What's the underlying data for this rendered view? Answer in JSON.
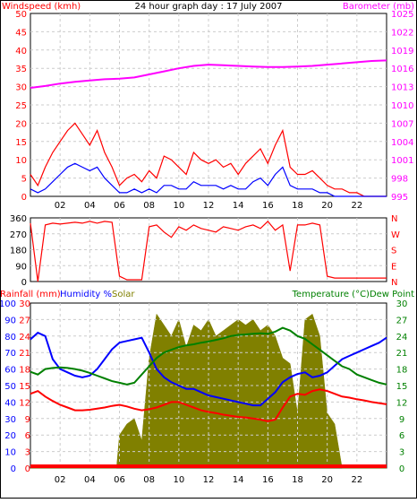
{
  "chart_data": [
    {
      "type": "line",
      "title": "24 hour graph day : 17 July 2007",
      "ylabel_left": "Windspeed (kmh)",
      "ylabel_right": "Barometer (mb)",
      "x_ticks": [
        "02",
        "04",
        "06",
        "08",
        "10",
        "12",
        "14",
        "16",
        "18",
        "20",
        "22"
      ],
      "xlim": [
        0,
        24
      ],
      "ylim_left": [
        0,
        50
      ],
      "y_ticks_left": [
        0,
        5,
        10,
        15,
        20,
        25,
        30,
        35,
        40,
        45,
        50
      ],
      "ylim_right": [
        995,
        1025
      ],
      "y_ticks_right": [
        995,
        998,
        1001,
        1004,
        1007,
        1010,
        1013,
        1016,
        1019,
        1022,
        1025
      ],
      "grid": true,
      "colors": {
        "gust": "#ff0000",
        "average": "#0000ff",
        "barometer": "#ff00ff",
        "left_axis_label": "#ff0000",
        "right_axis_label": "#ff00ff"
      },
      "series": [
        {
          "id": "gust",
          "axis": "left",
          "x": [
            0,
            0.5,
            1,
            1.5,
            2,
            2.5,
            3,
            3.5,
            4,
            4.5,
            5,
            5.5,
            6,
            6.5,
            7,
            7.5,
            8,
            8.5,
            9,
            9.5,
            10,
            10.5,
            11,
            11.5,
            12,
            12.5,
            13,
            13.5,
            14,
            14.5,
            15,
            15.5,
            16,
            16.5,
            17,
            17.5,
            18,
            18.5,
            19,
            19.5,
            20,
            20.5,
            21,
            21.5,
            22,
            22.5,
            23,
            23.5,
            24
          ],
          "values": [
            6,
            3,
            8,
            12,
            15,
            18,
            20,
            17,
            14,
            18,
            12,
            8,
            3,
            5,
            6,
            4,
            7,
            5,
            11,
            10,
            8,
            6,
            12,
            10,
            9,
            10,
            8,
            9,
            6,
            9,
            11,
            13,
            9,
            14,
            18,
            8,
            6,
            6,
            7,
            5,
            3,
            2,
            2,
            1,
            1,
            0,
            0,
            0,
            0
          ]
        },
        {
          "id": "average",
          "axis": "left",
          "x": [
            0,
            0.5,
            1,
            1.5,
            2,
            2.5,
            3,
            3.5,
            4,
            4.5,
            5,
            5.5,
            6,
            6.5,
            7,
            7.5,
            8,
            8.5,
            9,
            9.5,
            10,
            10.5,
            11,
            11.5,
            12,
            12.5,
            13,
            13.5,
            14,
            14.5,
            15,
            15.5,
            16,
            16.5,
            17,
            17.5,
            18,
            18.5,
            19,
            19.5,
            20,
            20.5,
            21,
            21.5,
            22,
            22.5,
            23,
            23.5,
            24
          ],
          "values": [
            2,
            1,
            2,
            4,
            6,
            8,
            9,
            8,
            7,
            8,
            5,
            3,
            1,
            1,
            2,
            1,
            2,
            1,
            3,
            3,
            2,
            2,
            4,
            3,
            3,
            3,
            2,
            3,
            2,
            2,
            4,
            5,
            3,
            6,
            8,
            3,
            2,
            2,
            2,
            1,
            1,
            0,
            0,
            0,
            0,
            0,
            0,
            0,
            0
          ]
        },
        {
          "id": "barometer",
          "axis": "right",
          "x": [
            0,
            1,
            2,
            3,
            4,
            5,
            6,
            7,
            8,
            9,
            10,
            11,
            12,
            13,
            14,
            15,
            16,
            17,
            18,
            19,
            20,
            21,
            22,
            23,
            24
          ],
          "values": [
            1012.8,
            1013.1,
            1013.5,
            1013.8,
            1014.0,
            1014.2,
            1014.3,
            1014.5,
            1015.0,
            1015.5,
            1016.0,
            1016.4,
            1016.6,
            1016.5,
            1016.4,
            1016.3,
            1016.2,
            1016.2,
            1016.3,
            1016.4,
            1016.6,
            1016.8,
            1017.0,
            1017.2,
            1017.3
          ]
        }
      ]
    },
    {
      "type": "line",
      "ylabel_right_letters": [
        "N",
        "W",
        "S",
        "E",
        "N"
      ],
      "ylim": [
        0,
        360
      ],
      "y_ticks": [
        0,
        90,
        180,
        270,
        360
      ],
      "xlim": [
        0,
        24
      ],
      "grid": true,
      "colors": {
        "direction": "#ff0000",
        "compass_labels": "#ff0000"
      },
      "series": [
        {
          "id": "wind_direction",
          "x": [
            0,
            0.5,
            1,
            1.5,
            2,
            2.5,
            3,
            3.5,
            4,
            4.5,
            5,
            5.5,
            6,
            6.5,
            7,
            7.5,
            8,
            8.5,
            9,
            9.5,
            10,
            10.5,
            11,
            11.5,
            12,
            12.5,
            13,
            13.5,
            14,
            14.5,
            15,
            15.5,
            16,
            16.5,
            17,
            17.5,
            18,
            18.5,
            19,
            19.5,
            20,
            20.5,
            21,
            21.5,
            22,
            22.5,
            23,
            23.5,
            24
          ],
          "values": [
            330,
            0,
            320,
            330,
            325,
            330,
            335,
            330,
            340,
            330,
            340,
            335,
            30,
            10,
            10,
            10,
            310,
            320,
            280,
            250,
            310,
            290,
            320,
            300,
            290,
            280,
            310,
            300,
            290,
            310,
            320,
            300,
            340,
            290,
            320,
            60,
            320,
            320,
            330,
            320,
            30,
            20,
            20,
            20,
            20,
            20,
            20,
            20,
            20
          ]
        }
      ]
    },
    {
      "type": "area",
      "ylabel_left": "Rainfall (mm)",
      "legend_left": [
        "Humidity %",
        "Solar"
      ],
      "ylabel_right": "Temperature (°C)Dew Point",
      "x_ticks": [
        "02",
        "04",
        "06",
        "08",
        "10",
        "12",
        "14",
        "16",
        "18",
        "20",
        "22"
      ],
      "xlim": [
        0,
        24
      ],
      "ylim_left_humidity": [
        0,
        100
      ],
      "y_ticks_left_humidity": [
        0,
        10,
        20,
        30,
        40,
        50,
        60,
        70,
        80,
        90,
        100
      ],
      "ylim_left_rain": [
        0,
        30
      ],
      "y_ticks_left_rain": [
        0,
        3,
        6,
        9,
        12,
        15,
        18,
        21,
        24,
        27,
        30
      ],
      "ylim_right_temp": [
        0,
        30
      ],
      "y_ticks_right_temp": [
        0,
        3,
        6,
        9,
        12,
        15,
        18,
        21,
        24,
        27,
        30
      ],
      "grid": true,
      "colors": {
        "solar": "#808000",
        "humidity": "#0000ff",
        "temperature": "#008000",
        "dew_point": "#ff0000",
        "rainfall": "#ff0000",
        "rain_label": "#ff0000",
        "humidity_label": "#0000ff",
        "solar_label": "#808000",
        "temp_label": "#008000",
        "dewpoint_label": "#ff0000"
      },
      "series": [
        {
          "id": "solar",
          "axis": "right_temp",
          "x": [
            0,
            5.8,
            6,
            6.5,
            7,
            7.5,
            8,
            8.5,
            9,
            9.5,
            10,
            10.5,
            11,
            11.5,
            12,
            12.5,
            13,
            13.5,
            14,
            14.5,
            15,
            15.5,
            16,
            16.5,
            17,
            17.5,
            18,
            18.5,
            19,
            19.5,
            20,
            20.5,
            21,
            24
          ],
          "values": [
            0,
            0,
            6,
            8,
            9,
            5,
            20,
            28,
            26,
            24,
            27,
            22,
            26,
            25,
            27,
            24,
            25,
            26,
            27,
            26,
            27,
            25,
            26,
            24,
            20,
            19,
            10,
            27,
            28,
            24,
            10,
            8,
            0,
            0
          ]
        },
        {
          "id": "humidity",
          "axis": "left_humidity",
          "x": [
            0,
            0.5,
            1,
            1.5,
            2,
            2.5,
            3,
            3.5,
            4,
            4.5,
            5,
            5.5,
            6,
            6.5,
            7,
            7.5,
            8,
            8.5,
            9,
            9.5,
            10,
            10.5,
            11,
            11.5,
            12,
            12.5,
            13,
            13.5,
            14,
            14.5,
            15,
            15.5,
            16,
            16.5,
            17,
            17.5,
            18,
            18.5,
            19,
            19.5,
            20,
            20.5,
            21,
            21.5,
            22,
            22.5,
            23,
            23.5,
            24
          ],
          "values": [
            78,
            82,
            80,
            66,
            60,
            58,
            56,
            55,
            56,
            60,
            66,
            72,
            76,
            77,
            78,
            79,
            70,
            60,
            55,
            52,
            50,
            48,
            48,
            46,
            44,
            43,
            42,
            41,
            40,
            39,
            38,
            38,
            42,
            46,
            52,
            55,
            57,
            58,
            55,
            56,
            58,
            62,
            66,
            68,
            70,
            72,
            74,
            76,
            79
          ]
        },
        {
          "id": "temperature",
          "axis": "right_temp",
          "x": [
            0,
            0.5,
            1,
            1.5,
            2,
            2.5,
            3,
            3.5,
            4,
            4.5,
            5,
            5.5,
            6,
            6.5,
            7,
            7.5,
            8,
            8.5,
            9,
            9.5,
            10,
            10.5,
            11,
            11.5,
            12,
            12.5,
            13,
            13.5,
            14,
            14.5,
            15,
            15.5,
            16,
            16.5,
            17,
            17.5,
            18,
            18.5,
            19,
            19.5,
            20,
            20.5,
            21,
            21.5,
            22,
            22.5,
            23,
            23.5,
            24
          ],
          "values": [
            17.5,
            17,
            18,
            18.2,
            18.3,
            18.2,
            18,
            17.7,
            17.3,
            16.8,
            16.3,
            15.8,
            15.5,
            15.2,
            15.5,
            17,
            18.5,
            20,
            21,
            21.5,
            22,
            22.3,
            22.5,
            22.8,
            23,
            23.3,
            23.6,
            24,
            24.2,
            24.3,
            24.4,
            24.5,
            24.4,
            24.8,
            25.5,
            25,
            24,
            23.5,
            22.5,
            21.5,
            20.5,
            19.5,
            18.5,
            18,
            17,
            16.5,
            16,
            15.5,
            15.2
          ]
        },
        {
          "id": "dew_point",
          "axis": "right_temp",
          "x": [
            0,
            0.5,
            1,
            1.5,
            2,
            2.5,
            3,
            3.5,
            4,
            4.5,
            5,
            5.5,
            6,
            6.5,
            7,
            7.5,
            8,
            8.5,
            9,
            9.5,
            10,
            10.5,
            11,
            11.5,
            12,
            12.5,
            13,
            13.5,
            14,
            14.5,
            15,
            15.5,
            16,
            16.5,
            17,
            17.5,
            18,
            18.5,
            19,
            19.5,
            20,
            20.5,
            21,
            21.5,
            22,
            22.5,
            23,
            23.5,
            24
          ],
          "values": [
            13.5,
            14,
            13,
            12.2,
            11.5,
            11,
            10.5,
            10.5,
            10.6,
            10.8,
            11,
            11.3,
            11.5,
            11.2,
            10.8,
            10.5,
            10.7,
            11,
            11.5,
            12,
            12,
            11.5,
            11,
            10.5,
            10.2,
            10,
            9.7,
            9.5,
            9.3,
            9.2,
            9,
            8.8,
            8.5,
            8.8,
            11,
            13,
            13.5,
            13.3,
            14,
            14.3,
            14,
            13.5,
            13,
            12.8,
            12.5,
            12.3,
            12,
            11.8,
            11.6
          ]
        },
        {
          "id": "rainfall",
          "axis": "left_rain",
          "x": [
            0,
            24
          ],
          "values": [
            0,
            0
          ]
        }
      ]
    }
  ]
}
